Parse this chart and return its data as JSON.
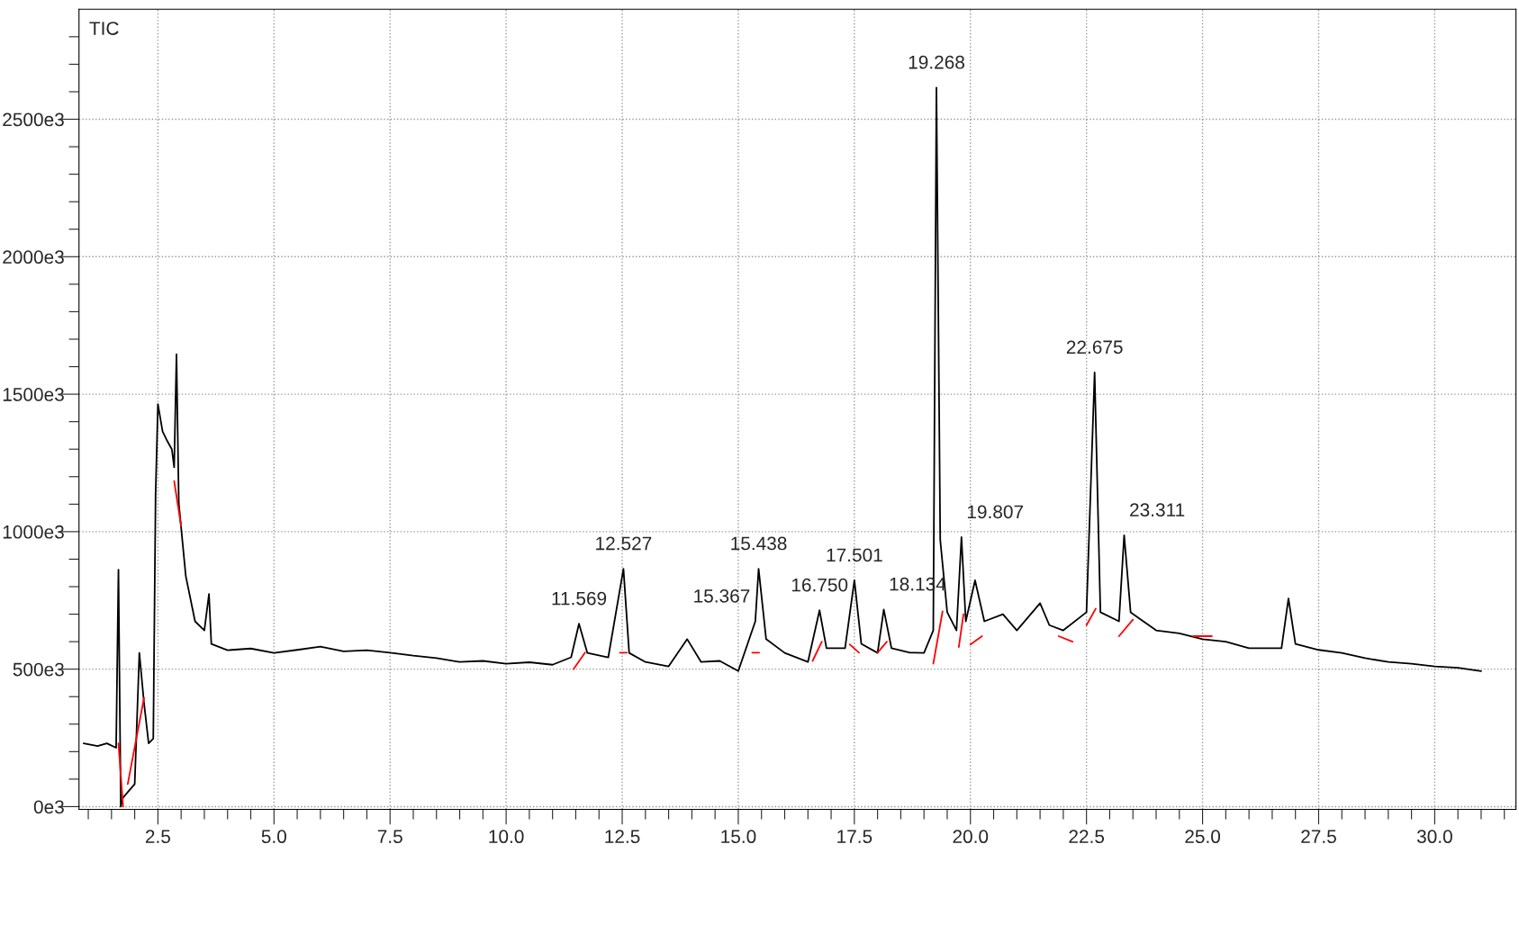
{
  "chart_data": {
    "type": "line",
    "annotations": [
      "TIC",
      {
        "text": "11.569",
        "x": 11.569,
        "y": 665000
      },
      {
        "text": "12.527",
        "x": 12.527,
        "y": 865000
      },
      {
        "text": "15.367",
        "x": 15.367,
        "y": 674000
      },
      {
        "text": "15.438",
        "x": 15.438,
        "y": 865000
      },
      {
        "text": "16.750",
        "x": 16.75,
        "y": 714000
      },
      {
        "text": "17.501",
        "x": 17.501,
        "y": 823000
      },
      {
        "text": "18.134",
        "x": 18.134,
        "y": 717000
      },
      {
        "text": "19.268",
        "x": 19.268,
        "y": 2615000
      },
      {
        "text": "19.807",
        "x": 19.807,
        "y": 980000
      },
      {
        "text": "22.675",
        "x": 22.675,
        "y": 1579000
      },
      {
        "text": "23.311",
        "x": 23.311,
        "y": 987000
      }
    ],
    "series": [
      {
        "color": "#000000",
        "x": [
          0.9,
          1.2,
          1.4,
          1.6,
          1.65,
          1.7,
          1.75,
          2.0,
          2.1,
          2.2,
          2.3,
          2.4,
          2.45,
          2.5,
          2.6,
          2.7,
          2.8,
          2.85,
          2.9,
          2.95,
          3.1,
          3.3,
          3.5,
          3.6,
          3.65,
          4.0,
          4.5,
          5.0,
          5.5,
          6.0,
          6.5,
          7.0,
          7.5,
          8.0,
          8.5,
          9.0,
          9.5,
          10.0,
          10.5,
          11.0,
          11.4,
          11.569,
          11.75,
          12.2,
          12.527,
          12.65,
          13.0,
          13.5,
          13.9,
          14.2,
          14.6,
          15.0,
          15.367,
          15.438,
          15.6,
          16.0,
          16.5,
          16.75,
          16.9,
          17.3,
          17.501,
          17.65,
          18.0,
          18.134,
          18.3,
          18.7,
          19.0,
          19.2,
          19.268,
          19.35,
          19.5,
          19.7,
          19.807,
          19.9,
          20.1,
          20.3,
          20.7,
          21.0,
          21.5,
          21.7,
          22.0,
          22.5,
          22.675,
          22.8,
          23.2,
          23.311,
          23.45,
          24.0,
          24.5,
          25.0,
          25.5,
          26.0,
          26.7,
          26.85,
          27.0,
          27.5,
          28.0,
          28.5,
          29.0,
          29.5,
          30.0,
          30.5,
          31.0
        ],
        "values": [
          230000,
          220000,
          230000,
          214000,
          862000,
          0,
          33000,
          82000,
          559000,
          378000,
          230000,
          247000,
          1135000,
          1464000,
          1365000,
          1330000,
          1300000,
          1234000,
          1645000,
          1102000,
          839000,
          674000,
          641000,
          773000,
          592000,
          569000,
          575000,
          559000,
          570000,
          582000,
          565000,
          569000,
          560000,
          549000,
          540000,
          526000,
          530000,
          520000,
          525000,
          516000,
          543000,
          665000,
          559000,
          543000,
          865000,
          559000,
          526000,
          510000,
          609000,
          526000,
          530000,
          493000,
          674000,
          865000,
          609000,
          559000,
          526000,
          714000,
          576000,
          576000,
          823000,
          592000,
          559000,
          717000,
          576000,
          560000,
          559000,
          641000,
          2615000,
          970000,
          707000,
          641000,
          980000,
          674000,
          823000,
          674000,
          700000,
          641000,
          740000,
          660000,
          641000,
          707000,
          1579000,
          707000,
          674000,
          987000,
          707000,
          641000,
          630000,
          609000,
          600000,
          576000,
          576000,
          757000,
          592000,
          570000,
          559000,
          540000,
          526000,
          520000,
          510000,
          505000,
          493000
        ]
      },
      {
        "color": "#ff0000",
        "x": [
          1.65,
          1.75,
          1.76,
          1.85,
          2.2,
          2.21,
          2.85,
          3.0,
          3.01,
          11.45,
          11.7,
          11.71,
          12.45,
          12.6,
          12.61,
          15.3,
          15.45,
          15.46,
          16.6,
          16.8,
          16.81,
          17.4,
          17.6,
          17.61,
          18.0,
          18.2,
          18.21,
          19.2,
          19.4,
          19.41,
          19.75,
          19.85,
          19.86,
          20.0,
          20.25,
          20.26,
          21.9,
          22.2,
          22.21,
          22.5,
          22.7,
          22.71,
          23.2,
          23.5,
          23.51,
          24.8,
          25.2
        ],
        "values": [
          230000,
          0,
          null,
          82000,
          395000,
          null,
          1184000,
          1020000,
          null,
          500000,
          560000,
          null,
          560000,
          560000,
          null,
          560000,
          560000,
          null,
          530000,
          600000,
          null,
          590000,
          560000,
          null,
          560000,
          600000,
          null,
          520000,
          710000,
          null,
          580000,
          700000,
          null,
          590000,
          620000,
          null,
          620000,
          600000,
          null,
          660000,
          720000,
          null,
          620000,
          680000,
          null,
          620000,
          620000
        ]
      }
    ],
    "xlim": [
      0.8,
      31.75
    ],
    "ylim": [
      -10000,
      2900000
    ],
    "xticks": [
      {
        "value": 2.5,
        "label": "2.5"
      },
      {
        "value": 5,
        "label": "5.0"
      },
      {
        "value": 7.5,
        "label": "7.5"
      },
      {
        "value": 10,
        "label": "10.0"
      },
      {
        "value": 12.5,
        "label": "12.5"
      },
      {
        "value": 15,
        "label": "15.0"
      },
      {
        "value": 17.5,
        "label": "17.5"
      },
      {
        "value": 20,
        "label": "20.0"
      },
      {
        "value": 22.5,
        "label": "22.5"
      },
      {
        "value": 25,
        "label": "25.0"
      },
      {
        "value": 27.5,
        "label": "27.5"
      },
      {
        "value": 30,
        "label": "30.0"
      },
      {
        "value": 1.0,
        "label": null
      },
      {
        "value": 1.5,
        "label": null
      },
      {
        "value": 2.0,
        "label": null
      },
      {
        "value": 3.0,
        "label": null
      },
      {
        "value": 3.5,
        "label": null
      },
      {
        "value": 4.0,
        "label": null
      },
      {
        "value": 4.5,
        "label": null
      },
      {
        "value": 5.5,
        "label": null
      },
      {
        "value": 6.0,
        "label": null
      },
      {
        "value": 6.5,
        "label": null
      },
      {
        "value": 7.0,
        "label": null
      },
      {
        "value": 8.0,
        "label": null
      },
      {
        "value": 8.5,
        "label": null
      },
      {
        "value": 9.0,
        "label": null
      },
      {
        "value": 9.5,
        "label": null
      },
      {
        "value": 10.5,
        "label": null
      },
      {
        "value": 11.0,
        "label": null
      },
      {
        "value": 11.5,
        "label": null
      },
      {
        "value": 12.0,
        "label": null
      },
      {
        "value": 13.0,
        "label": null
      },
      {
        "value": 13.5,
        "label": null
      },
      {
        "value": 14.0,
        "label": null
      },
      {
        "value": 14.5,
        "label": null
      },
      {
        "value": 15.5,
        "label": null
      },
      {
        "value": 16.0,
        "label": null
      },
      {
        "value": 16.5,
        "label": null
      },
      {
        "value": 17.0,
        "label": null
      },
      {
        "value": 18.0,
        "label": null
      },
      {
        "value": 18.5,
        "label": null
      },
      {
        "value": 19.0,
        "label": null
      },
      {
        "value": 19.5,
        "label": null
      },
      {
        "value": 20.5,
        "label": null
      },
      {
        "value": 21.0,
        "label": null
      },
      {
        "value": 21.5,
        "label": null
      },
      {
        "value": 22.0,
        "label": null
      },
      {
        "value": 23.0,
        "label": null
      },
      {
        "value": 23.5,
        "label": null
      },
      {
        "value": 24.0,
        "label": null
      },
      {
        "value": 24.5,
        "label": null
      },
      {
        "value": 25.5,
        "label": null
      },
      {
        "value": 26.0,
        "label": null
      },
      {
        "value": 26.5,
        "label": null
      },
      {
        "value": 27.0,
        "label": null
      },
      {
        "value": 28.0,
        "label": null
      },
      {
        "value": 28.5,
        "label": null
      },
      {
        "value": 29.0,
        "label": null
      },
      {
        "value": 29.5,
        "label": null
      },
      {
        "value": 30.5,
        "label": null
      },
      {
        "value": 31.0,
        "label": null
      },
      {
        "value": 31.5,
        "label": null
      }
    ],
    "yticks": [
      {
        "value": 0,
        "label": "0e3"
      },
      {
        "value": 500000,
        "label": "500e3"
      },
      {
        "value": 1000000,
        "label": "1000e3"
      },
      {
        "value": 1500000,
        "label": "1500e3"
      },
      {
        "value": 2000000,
        "label": "2000e3"
      },
      {
        "value": 2500000,
        "label": "2500e3"
      },
      {
        "value": 100000,
        "label": null
      },
      {
        "value": 200000,
        "label": null
      },
      {
        "value": 300000,
        "label": null
      },
      {
        "value": 400000,
        "label": null
      },
      {
        "value": 600000,
        "label": null
      },
      {
        "value": 700000,
        "label": null
      },
      {
        "value": 800000,
        "label": null
      },
      {
        "value": 900000,
        "label": null
      },
      {
        "value": 1100000,
        "label": null
      },
      {
        "value": 1200000,
        "label": null
      },
      {
        "value": 1300000,
        "label": null
      },
      {
        "value": 1400000,
        "label": null
      },
      {
        "value": 1600000,
        "label": null
      },
      {
        "value": 1700000,
        "label": null
      },
      {
        "value": 1800000,
        "label": null
      },
      {
        "value": 1900000,
        "label": null
      },
      {
        "value": 2100000,
        "label": null
      },
      {
        "value": 2200000,
        "label": null
      },
      {
        "value": 2300000,
        "label": null
      },
      {
        "value": 2400000,
        "label": null
      },
      {
        "value": 2600000,
        "label": null
      },
      {
        "value": 2700000,
        "label": null
      },
      {
        "value": 2800000,
        "label": null
      }
    ],
    "grid": true,
    "line_style": "solid",
    "marker": "none",
    "legend": false
  }
}
